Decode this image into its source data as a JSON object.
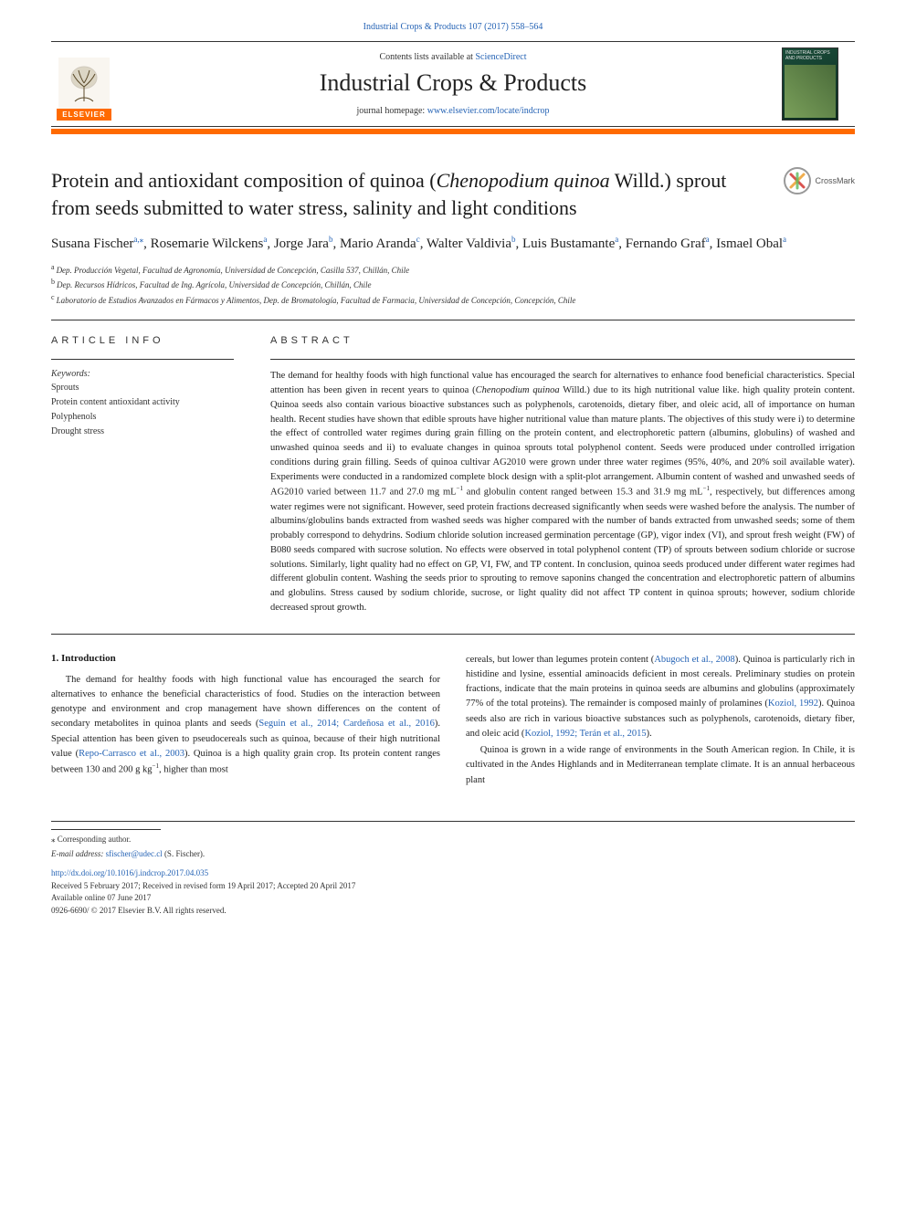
{
  "top_citation": "Industrial Crops & Products 107 (2017) 558–564",
  "masthead": {
    "contents_line_pre": "Contents lists available at ",
    "contents_line_link": "ScienceDirect",
    "journal_title": "Industrial Crops & Products",
    "homepage_pre": "journal homepage: ",
    "homepage_link": "www.elsevier.com/locate/indcrop",
    "elsevier_label": "ELSEVIER",
    "cover_text": "INDUSTRIAL CROPS AND PRODUCTS"
  },
  "crossmark_label": "CrossMark",
  "title_parts": {
    "pre": "Protein and antioxidant composition of quinoa (",
    "italic": "Chenopodium quinoa",
    "post": " Willd.) sprout from seeds submitted to water stress, salinity and light conditions"
  },
  "authors": [
    {
      "name": "Susana Fischer",
      "sup": "a,",
      "corr": "⁎"
    },
    {
      "name": "Rosemarie Wilckens",
      "sup": "a"
    },
    {
      "name": "Jorge Jara",
      "sup": "b"
    },
    {
      "name": "Mario Aranda",
      "sup": "c"
    },
    {
      "name": "Walter Valdivia",
      "sup": "b"
    },
    {
      "name": "Luis Bustamante",
      "sup": "a"
    },
    {
      "name": "Fernando Graf",
      "sup": "a"
    },
    {
      "name": "Ismael Obal",
      "sup": "a"
    }
  ],
  "affiliations": [
    {
      "key": "a",
      "text": "Dep. Producción Vegetal, Facultad de Agronomía, Universidad de Concepción, Casilla 537, Chillán, Chile"
    },
    {
      "key": "b",
      "text": "Dep. Recursos Hídricos, Facultad de Ing. Agrícola, Universidad de Concepción, Chillán, Chile"
    },
    {
      "key": "c",
      "text": "Laboratorio de Estudios Avanzados en Fármacos y Alimentos, Dep. de Bromatología, Facultad de Farmacia, Universidad de Concepción, Concepción, Chile"
    }
  ],
  "article_info_heading": "ARTICLE INFO",
  "abstract_heading": "ABSTRACT",
  "keywords_label": "Keywords:",
  "keywords": [
    "Sprouts",
    "Protein content antioxidant activity",
    "Polyphenols",
    "Drought stress"
  ],
  "abstract_text": "The demand for healthy foods with high functional value has encouraged the search for alternatives to enhance food beneficial characteristics. Special attention has been given in recent years to quinoa (Chenopodium quinoa Willd.) due to its high nutritional value like. high quality protein content. Quinoa seeds also contain various bioactive substances such as polyphenols, carotenoids, dietary fiber, and oleic acid, all of importance on human health. Recent studies have shown that edible sprouts have higher nutritional value than mature plants. The objectives of this study were i) to determine the effect of controlled water regimes during grain filling on the protein content, and electrophoretic pattern (albumins, globulins) of washed and unwashed quinoa seeds and ii) to evaluate changes in quinoa sprouts total polyphenol content. Seeds were produced under controlled irrigation conditions during grain filling. Seeds of quinoa cultivar AG2010 were grown under three water regimes (95%, 40%, and 20% soil available water). Experiments were conducted in a randomized complete block design with a split-plot arrangement. Albumin content of washed and unwashed seeds of AG2010 varied between 11.7 and 27.0 mg mL⁻¹ and globulin content ranged between 15.3 and 31.9 mg mL⁻¹, respectively, but differences among water regimes were not significant. However, seed protein fractions decreased significantly when seeds were washed before the analysis. The number of albumins/globulins bands extracted from washed seeds was higher compared with the number of bands extracted from unwashed seeds; some of them probably correspond to dehydrins. Sodium chloride solution increased germination percentage (GP), vigor index (VI), and sprout fresh weight (FW) of B080 seeds compared with sucrose solution. No effects were observed in total polyphenol content (TP) of sprouts between sodium chloride or sucrose solutions. Similarly, light quality had no effect on GP, VI, FW, and TP content. In conclusion, quinoa seeds produced under different water regimes had different globulin content. Washing the seeds prior to sprouting to remove saponins changed the concentration and electrophoretic pattern of albumins and globulins. Stress caused by sodium chloride, sucrose, or light quality did not affect TP content in quinoa sprouts; however, sodium chloride decreased sprout growth.",
  "intro_heading": "1. Introduction",
  "intro_col1": "The demand for healthy foods with high functional value has encouraged the search for alternatives to enhance the beneficial characteristics of food. Studies on the interaction between genotype and environment and crop management have shown differences on the content of secondary metabolites in quinoa plants and seeds (Seguin et al., 2014; Cardeñosa et al., 2016). Special attention has been given to pseudocereals such as quinoa, because of their high nutritional value (Repo-Carrasco et al., 2003). Quinoa is a high quality grain crop. Its protein content ranges between 130 and 200 g kg⁻¹, higher than most",
  "intro_col2_p1": "cereals, but lower than legumes protein content (Abugoch et al., 2008). Quinoa is particularly rich in histidine and lysine, essential aminoacids deficient in most cereals. Preliminary studies on protein fractions, indicate that the main proteins in quinoa seeds are albumins and globulins (approximately 77% of the total proteins). The remainder is composed mainly of prolamines (Koziol, 1992). Quinoa seeds also are rich in various bioactive substances such as polyphenols, carotenoids, dietary fiber, and oleic acid (Koziol, 1992; Terán et al., 2015).",
  "intro_col2_p2": "Quinoa is grown in a wide range of environments in the South American region. In Chile, it is cultivated in the Andes Highlands and in Mediterranean template climate. It is an annual herbaceous plant",
  "footer": {
    "corr_label": "⁎ Corresponding author.",
    "email_label": "E-mail address: ",
    "email": "sfischer@udec.cl",
    "email_paren": " (S. Fischer).",
    "doi": "http://dx.doi.org/10.1016/j.indcrop.2017.04.035",
    "received": "Received 5 February 2017; Received in revised form 19 April 2017; Accepted 20 April 2017",
    "online": "Available online 07 June 2017",
    "copyright": "0926-6690/ © 2017 Elsevier B.V. All rights reserved."
  },
  "refs": {
    "seguin": "Seguin et al., 2014; Cardeñosa et al., 2016",
    "repo": "Repo-Carrasco et al., 2003",
    "abugoch": "Abugoch et al., 2008",
    "koziol1": "Koziol, 1992",
    "koziol2": "Koziol, 1992; Terán et al., 2015"
  },
  "colors": {
    "link": "#2563b5",
    "orange": "#ff6a00",
    "text": "#1a1a1a",
    "cover_bg_a": "#1a4d3a",
    "cover_bg_b": "#0d2b1f"
  }
}
